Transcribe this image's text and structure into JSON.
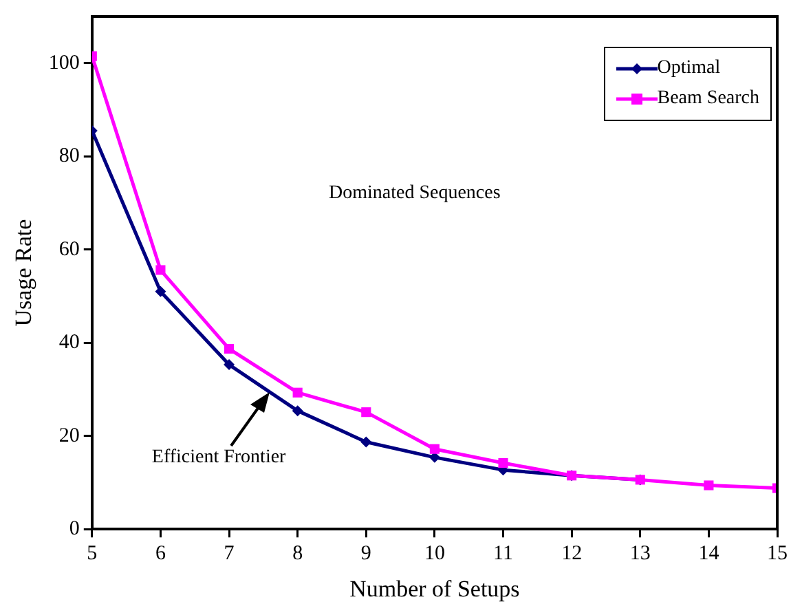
{
  "chart_data": {
    "type": "line",
    "xlabel": "Number of Setups",
    "ylabel": "Usage Rate",
    "x": [
      5,
      6,
      7,
      8,
      9,
      10,
      11,
      12,
      13,
      14,
      15
    ],
    "series": [
      {
        "name": "Optimal",
        "color": "#000080",
        "marker": "diamond",
        "values": [
          85.5,
          51,
          35.3,
          25.4,
          18.7,
          15.4,
          12.7,
          11.5,
          10.6,
          null,
          null
        ]
      },
      {
        "name": "Beam Search",
        "color": "#ff00ff",
        "marker": "square",
        "values": [
          101.5,
          55.6,
          38.7,
          29.3,
          25.1,
          17.2,
          14.2,
          11.5,
          10.6,
          9.4,
          8.8
        ]
      }
    ],
    "xlim": [
      5,
      15
    ],
    "xticks": [
      5,
      6,
      7,
      8,
      9,
      10,
      11,
      12,
      13,
      14,
      15
    ],
    "ylim": [
      0,
      110
    ],
    "yticks": [
      0,
      20,
      40,
      60,
      80,
      100
    ],
    "grid": false,
    "legend": "top right",
    "line_style": "solid",
    "annotations": [
      "Dominated Sequences",
      {
        "text": "Efficient Frontier",
        "x": 7.6,
        "y": 29.4
      }
    ]
  }
}
